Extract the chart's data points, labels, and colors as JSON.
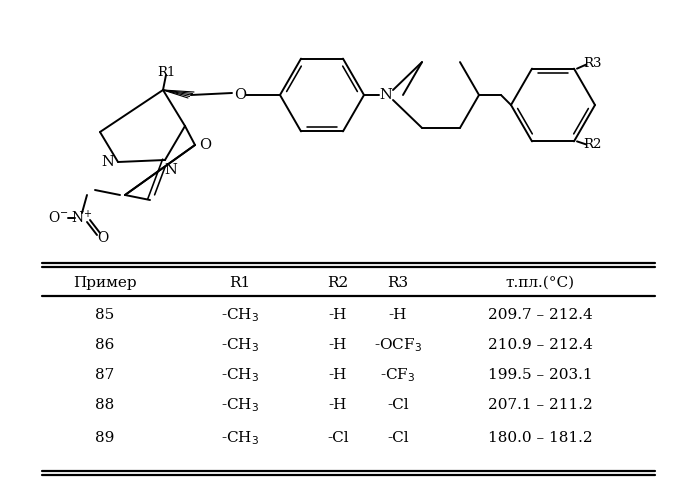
{
  "table_header": [
    "Пример",
    "R1",
    "R2",
    "R3",
    "т.пл.(°C)"
  ],
  "table_rows": [
    [
      "85",
      "-CH₃",
      "-H",
      "-H",
      "209.7 – 212.4"
    ],
    [
      "86",
      "-CH₃",
      "-H",
      "-OCF₃",
      "210.9 – 212.4"
    ],
    [
      "87",
      "-CH₃",
      "-H",
      "-CF₃",
      "199.5 – 203.1"
    ],
    [
      "88",
      "-CH₃",
      "-H",
      "-Cl",
      "207.1 – 211.2"
    ],
    [
      "89",
      "-CH₃",
      "-Cl",
      "-Cl",
      "180.0 – 181.2"
    ]
  ],
  "background_color": "#ffffff"
}
